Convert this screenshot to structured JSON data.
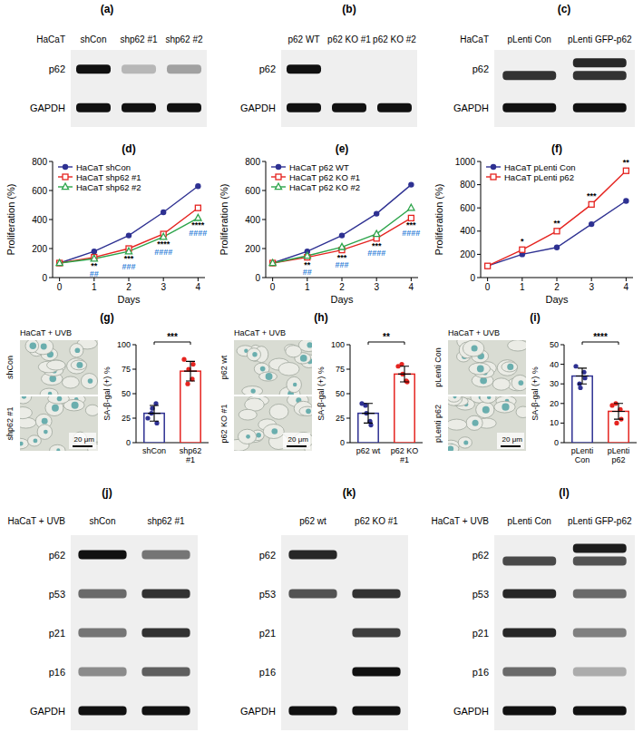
{
  "blots": [
    {
      "letter": "(a)",
      "cell_label": "HaCaT",
      "lanes": [
        "shCon",
        "shp62 #1",
        "shp62 #2"
      ],
      "rows": [
        {
          "label": "p62",
          "bands": [
            [
              1
            ],
            [
              0.25
            ],
            [
              0.35
            ]
          ]
        },
        {
          "label": "GAPDH",
          "bands": [
            [
              1
            ],
            [
              1
            ],
            [
              1
            ]
          ]
        }
      ]
    },
    {
      "letter": "(b)",
      "lanes": [
        "p62 WT",
        "p62 KO #1",
        "p62 KO #2"
      ],
      "rows": [
        {
          "label": "p62",
          "bands": [
            [
              1
            ],
            [
              0
            ],
            [
              0
            ]
          ]
        },
        {
          "label": "GAPDH",
          "bands": [
            [
              1
            ],
            [
              1
            ],
            [
              1
            ]
          ]
        }
      ]
    },
    {
      "letter": "(c)",
      "cell_label": "HaCaT",
      "lanes": [
        "pLenti Con",
        "pLenti GFP-p62"
      ],
      "rows": [
        {
          "label": "p62",
          "bands": [
            [
              0,
              0.85
            ],
            [
              0.9,
              0.85
            ]
          ]
        },
        {
          "label": "GAPDH",
          "bands": [
            [
              1
            ],
            [
              1
            ]
          ]
        }
      ]
    },
    {
      "letter": "(j)",
      "cell_label": "HaCaT + UVB",
      "lanes": [
        "shCon",
        "shp62 #1"
      ],
      "rows": [
        {
          "label": "p62",
          "bands": [
            [
              1
            ],
            [
              0.55
            ]
          ]
        },
        {
          "label": "p53",
          "bands": [
            [
              0.6
            ],
            [
              0.85
            ]
          ]
        },
        {
          "label": "p21",
          "bands": [
            [
              0.55
            ],
            [
              0.85
            ]
          ]
        },
        {
          "label": "p16",
          "bands": [
            [
              0.45
            ],
            [
              0.65
            ]
          ]
        },
        {
          "label": "GAPDH",
          "bands": [
            [
              1
            ],
            [
              1
            ]
          ]
        }
      ]
    },
    {
      "letter": "(k)",
      "cell_label": "HaCaT + UVB",
      "lanes": [
        "p62 wt",
        "p62 KO #1"
      ],
      "rows": [
        {
          "label": "p62",
          "bands": [
            [
              0.9
            ],
            [
              0
            ]
          ]
        },
        {
          "label": "p53",
          "bands": [
            [
              0.7
            ],
            [
              0.85
            ]
          ]
        },
        {
          "label": "p21",
          "bands": [
            [
              0
            ],
            [
              0.8
            ]
          ]
        },
        {
          "label": "p16",
          "bands": [
            [
              0
            ],
            [
              1
            ]
          ]
        },
        {
          "label": "GAPDH",
          "bands": [
            [
              1
            ],
            [
              1
            ]
          ]
        }
      ]
    },
    {
      "letter": "(l)",
      "cell_label": "HaCaT + UVB",
      "lanes": [
        "pLenti Con",
        "pLenti GFP-p62"
      ],
      "rows": [
        {
          "label": "p62",
          "bands": [
            [
              0,
              0.75
            ],
            [
              0.95,
              0.7
            ]
          ]
        },
        {
          "label": "p53",
          "bands": [
            [
              0.9
            ],
            [
              0.6
            ]
          ]
        },
        {
          "label": "p21",
          "bands": [
            [
              0.9
            ],
            [
              0.5
            ]
          ]
        },
        {
          "label": "p16",
          "bands": [
            [
              0.6
            ],
            [
              0.3
            ]
          ]
        },
        {
          "label": "GAPDH",
          "bands": [
            [
              1
            ],
            [
              1
            ]
          ]
        }
      ]
    }
  ],
  "chart_data": [
    {
      "panel": "(d)",
      "type": "line",
      "x": [
        0,
        1,
        2,
        3,
        4
      ],
      "xlim": [
        -0.2,
        4.2
      ],
      "xticks": [
        0,
        1,
        2,
        3,
        4
      ],
      "ylim": [
        0,
        800
      ],
      "yticks": [
        0,
        200,
        400,
        600,
        800
      ],
      "x_label": "Days",
      "y_label": "Proliferation (%)",
      "grid": false,
      "legend": "top-left",
      "series": [
        {
          "name": "HaCaT shCon",
          "color": "#2e3192",
          "marker": "circle",
          "values": [
            100,
            180,
            290,
            450,
            630
          ]
        },
        {
          "name": "HaCaT shp62 #1",
          "color": "#e52420",
          "marker": "square",
          "values": [
            100,
            140,
            200,
            300,
            480
          ]
        },
        {
          "name": "HaCaT shp62 #2",
          "color": "#2ca44a",
          "marker": "triangle",
          "values": [
            100,
            130,
            180,
            280,
            410
          ]
        }
      ],
      "annotations": [
        {
          "x": 1,
          "text": "**",
          "color": "#000000"
        },
        {
          "x": 1,
          "text": "##",
          "color": "#2f7fd8"
        },
        {
          "x": 2,
          "text": "***",
          "color": "#000000"
        },
        {
          "x": 2,
          "text": "###",
          "color": "#2f7fd8"
        },
        {
          "x": 3,
          "text": "****",
          "color": "#000000"
        },
        {
          "x": 3,
          "text": "####",
          "color": "#2f7fd8"
        },
        {
          "x": 4,
          "text": "****",
          "color": "#000000"
        },
        {
          "x": 4,
          "text": "####",
          "color": "#2f7fd8"
        }
      ]
    },
    {
      "panel": "(e)",
      "type": "line",
      "x": [
        0,
        1,
        2,
        3,
        4
      ],
      "xlim": [
        -0.2,
        4.2
      ],
      "xticks": [
        0,
        1,
        2,
        3,
        4
      ],
      "ylim": [
        0,
        800
      ],
      "yticks": [
        0,
        200,
        400,
        600,
        800
      ],
      "x_label": "Days",
      "y_label": "Proliferation (%)",
      "grid": false,
      "legend": "top-left",
      "series": [
        {
          "name": "HaCaT p62 WT",
          "color": "#2e3192",
          "marker": "circle",
          "values": [
            100,
            180,
            290,
            440,
            640
          ]
        },
        {
          "name": "HaCaT p62 KO #1",
          "color": "#e52420",
          "marker": "square",
          "values": [
            100,
            140,
            190,
            270,
            410
          ]
        },
        {
          "name": "HaCaT p62 KO #2",
          "color": "#2ca44a",
          "marker": "triangle",
          "values": [
            100,
            150,
            210,
            300,
            480
          ]
        }
      ],
      "annotations": [
        {
          "x": 1,
          "text": "**",
          "color": "#000000"
        },
        {
          "x": 1,
          "text": "##",
          "color": "#2f7fd8"
        },
        {
          "x": 2,
          "text": "***",
          "color": "#000000"
        },
        {
          "x": 2,
          "text": "###",
          "color": "#2f7fd8"
        },
        {
          "x": 3,
          "text": "***",
          "color": "#000000"
        },
        {
          "x": 3,
          "text": "####",
          "color": "#2f7fd8"
        },
        {
          "x": 4,
          "text": "***",
          "color": "#000000"
        },
        {
          "x": 4,
          "text": "####",
          "color": "#2f7fd8"
        }
      ]
    },
    {
      "panel": "(f)",
      "type": "line",
      "x": [
        0,
        1,
        2,
        3,
        4
      ],
      "xlim": [
        -0.2,
        4.2
      ],
      "xticks": [
        0,
        1,
        2,
        3,
        4
      ],
      "ylim": [
        0,
        1000
      ],
      "yticks": [
        0,
        200,
        400,
        600,
        800,
        1000
      ],
      "x_label": "Days",
      "y_label": "Proliferation (%)",
      "grid": false,
      "legend": "top-left",
      "series": [
        {
          "name": "HaCaT pLenti Con",
          "color": "#2e3192",
          "marker": "circle",
          "values": [
            100,
            200,
            260,
            460,
            660
          ]
        },
        {
          "name": "HaCaT pLenti p62",
          "color": "#e52420",
          "marker": "square",
          "values": [
            100,
            240,
            400,
            630,
            920
          ]
        }
      ],
      "annotations": [
        {
          "x": 1,
          "text": "*",
          "color": "#000000"
        },
        {
          "x": 2,
          "text": "**",
          "color": "#000000"
        },
        {
          "x": 3,
          "text": "***",
          "color": "#000000"
        },
        {
          "x": 4,
          "text": "**",
          "color": "#000000"
        }
      ]
    },
    {
      "panel": "(g)",
      "type": "bar",
      "categories": [
        "shCon",
        "shp62 #1"
      ],
      "values": [
        30,
        73
      ],
      "errors": [
        8,
        10
      ],
      "points": [
        [
          25,
          40,
          20,
          30,
          35
        ],
        [
          85,
          65,
          80,
          60,
          75
        ]
      ],
      "colors": [
        "#2e3192",
        "#e52420"
      ],
      "ylim": [
        0,
        100
      ],
      "yticks": [
        0,
        25,
        50,
        75,
        100
      ],
      "y_label": "SA-β-gal (+) %",
      "significance": "***"
    },
    {
      "panel": "(h)",
      "type": "bar",
      "categories": [
        "p62 wt",
        "p62 KO #1"
      ],
      "values": [
        30,
        70
      ],
      "errors": [
        10,
        8
      ],
      "points": [
        [
          40,
          22,
          18,
          38,
          30
        ],
        [
          78,
          63,
          62,
          80,
          70
        ]
      ],
      "colors": [
        "#2e3192",
        "#e52420"
      ],
      "ylim": [
        0,
        100
      ],
      "yticks": [
        0,
        25,
        50,
        75,
        100
      ],
      "y_label": "SA-β-gal (+) %",
      "significance": "**"
    },
    {
      "panel": "(i)",
      "type": "bar",
      "categories": [
        "pLenti Con",
        "pLenti p62"
      ],
      "values": [
        34,
        16
      ],
      "errors": [
        4,
        4
      ],
      "points": [
        [
          39,
          36,
          33,
          30,
          28
        ],
        [
          19,
          17,
          12,
          20,
          10
        ]
      ],
      "colors": [
        "#2e3192",
        "#e52420"
      ],
      "ylim": [
        0,
        50
      ],
      "yticks": [
        0,
        10,
        20,
        30,
        40,
        50
      ],
      "y_label": "SA-β-gal (+) %",
      "significance": "****"
    }
  ],
  "images": [
    {
      "title": "HaCaT + UVB",
      "rows": [
        "shCon",
        "shp62 #1"
      ],
      "scale_bar": "20 μm"
    },
    {
      "title": "HaCaT + UVB",
      "rows": [
        "p62 wt",
        "p62 KO #1"
      ],
      "scale_bar": "20 μm"
    },
    {
      "title": "HaCaT + UVB",
      "rows": [
        "pLenti Con",
        "pLenti p62"
      ],
      "scale_bar": "20 μm"
    }
  ]
}
